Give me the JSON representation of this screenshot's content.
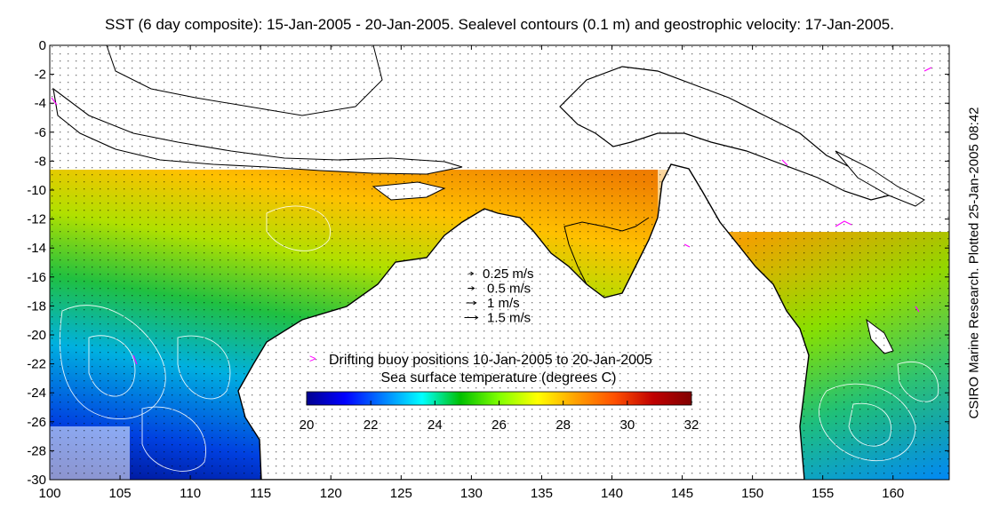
{
  "title": "SST (6 day composite): 15-Jan-2005 - 20-Jan-2005. Sealevel contours (0.1 m) and geostrophic velocity: 17-Jan-2005.",
  "credit": "CSIRO Marine Research. Plotted 25-Jan-2005 08:42",
  "map": {
    "lon_range": [
      100,
      164
    ],
    "lat_range": [
      -30,
      0
    ],
    "x_ticks": [
      100,
      105,
      110,
      115,
      120,
      125,
      130,
      135,
      140,
      145,
      150,
      155,
      160
    ],
    "x_tick_labels": [
      "100",
      "105",
      "110",
      "115",
      "120",
      "125",
      "130",
      "135",
      "140",
      "145",
      "150",
      "155",
      "160"
    ],
    "y_ticks": [
      0,
      -2,
      -4,
      -6,
      -8,
      -10,
      -12,
      -14,
      -16,
      -18,
      -20,
      -22,
      -24,
      -26,
      -28,
      -30
    ],
    "y_tick_labels": [
      "0",
      "-2",
      "-4",
      "-6",
      "-8",
      "-10",
      "-12",
      "-14",
      "-16",
      "-18",
      "-20",
      "-22",
      "-24",
      "-26",
      "-28",
      "-30"
    ],
    "land_color": "#ffffff",
    "coast_color": "#000000",
    "contour_color": "#ffffff",
    "buoy_color": "#ff00ff"
  },
  "velocity_legend": {
    "items": [
      {
        "label": "0.25 m/s",
        "value": 0.25
      },
      {
        "label": "0.5 m/s",
        "value": 0.5
      },
      {
        "label": "1 m/s",
        "value": 1
      },
      {
        "label": "1.5 m/s",
        "value": 1.5
      }
    ]
  },
  "buoy_legend": {
    "symbol": ">",
    "label": "Drifting buoy positions 10-Jan-2005 to 20-Jan-2005"
  },
  "colorbar": {
    "title": "Sea surface temperature (degrees C)",
    "min": 20,
    "max": 32,
    "ticks": [
      20,
      22,
      24,
      26,
      28,
      30,
      32
    ],
    "tick_labels": [
      "20",
      "22",
      "24",
      "26",
      "28",
      "30",
      "32"
    ],
    "colormap": [
      "#00008f",
      "#0000ff",
      "#0080ff",
      "#00ffff",
      "#00c000",
      "#80ff00",
      "#ffff00",
      "#ffa000",
      "#ff5000",
      "#c00000",
      "#800000"
    ]
  }
}
